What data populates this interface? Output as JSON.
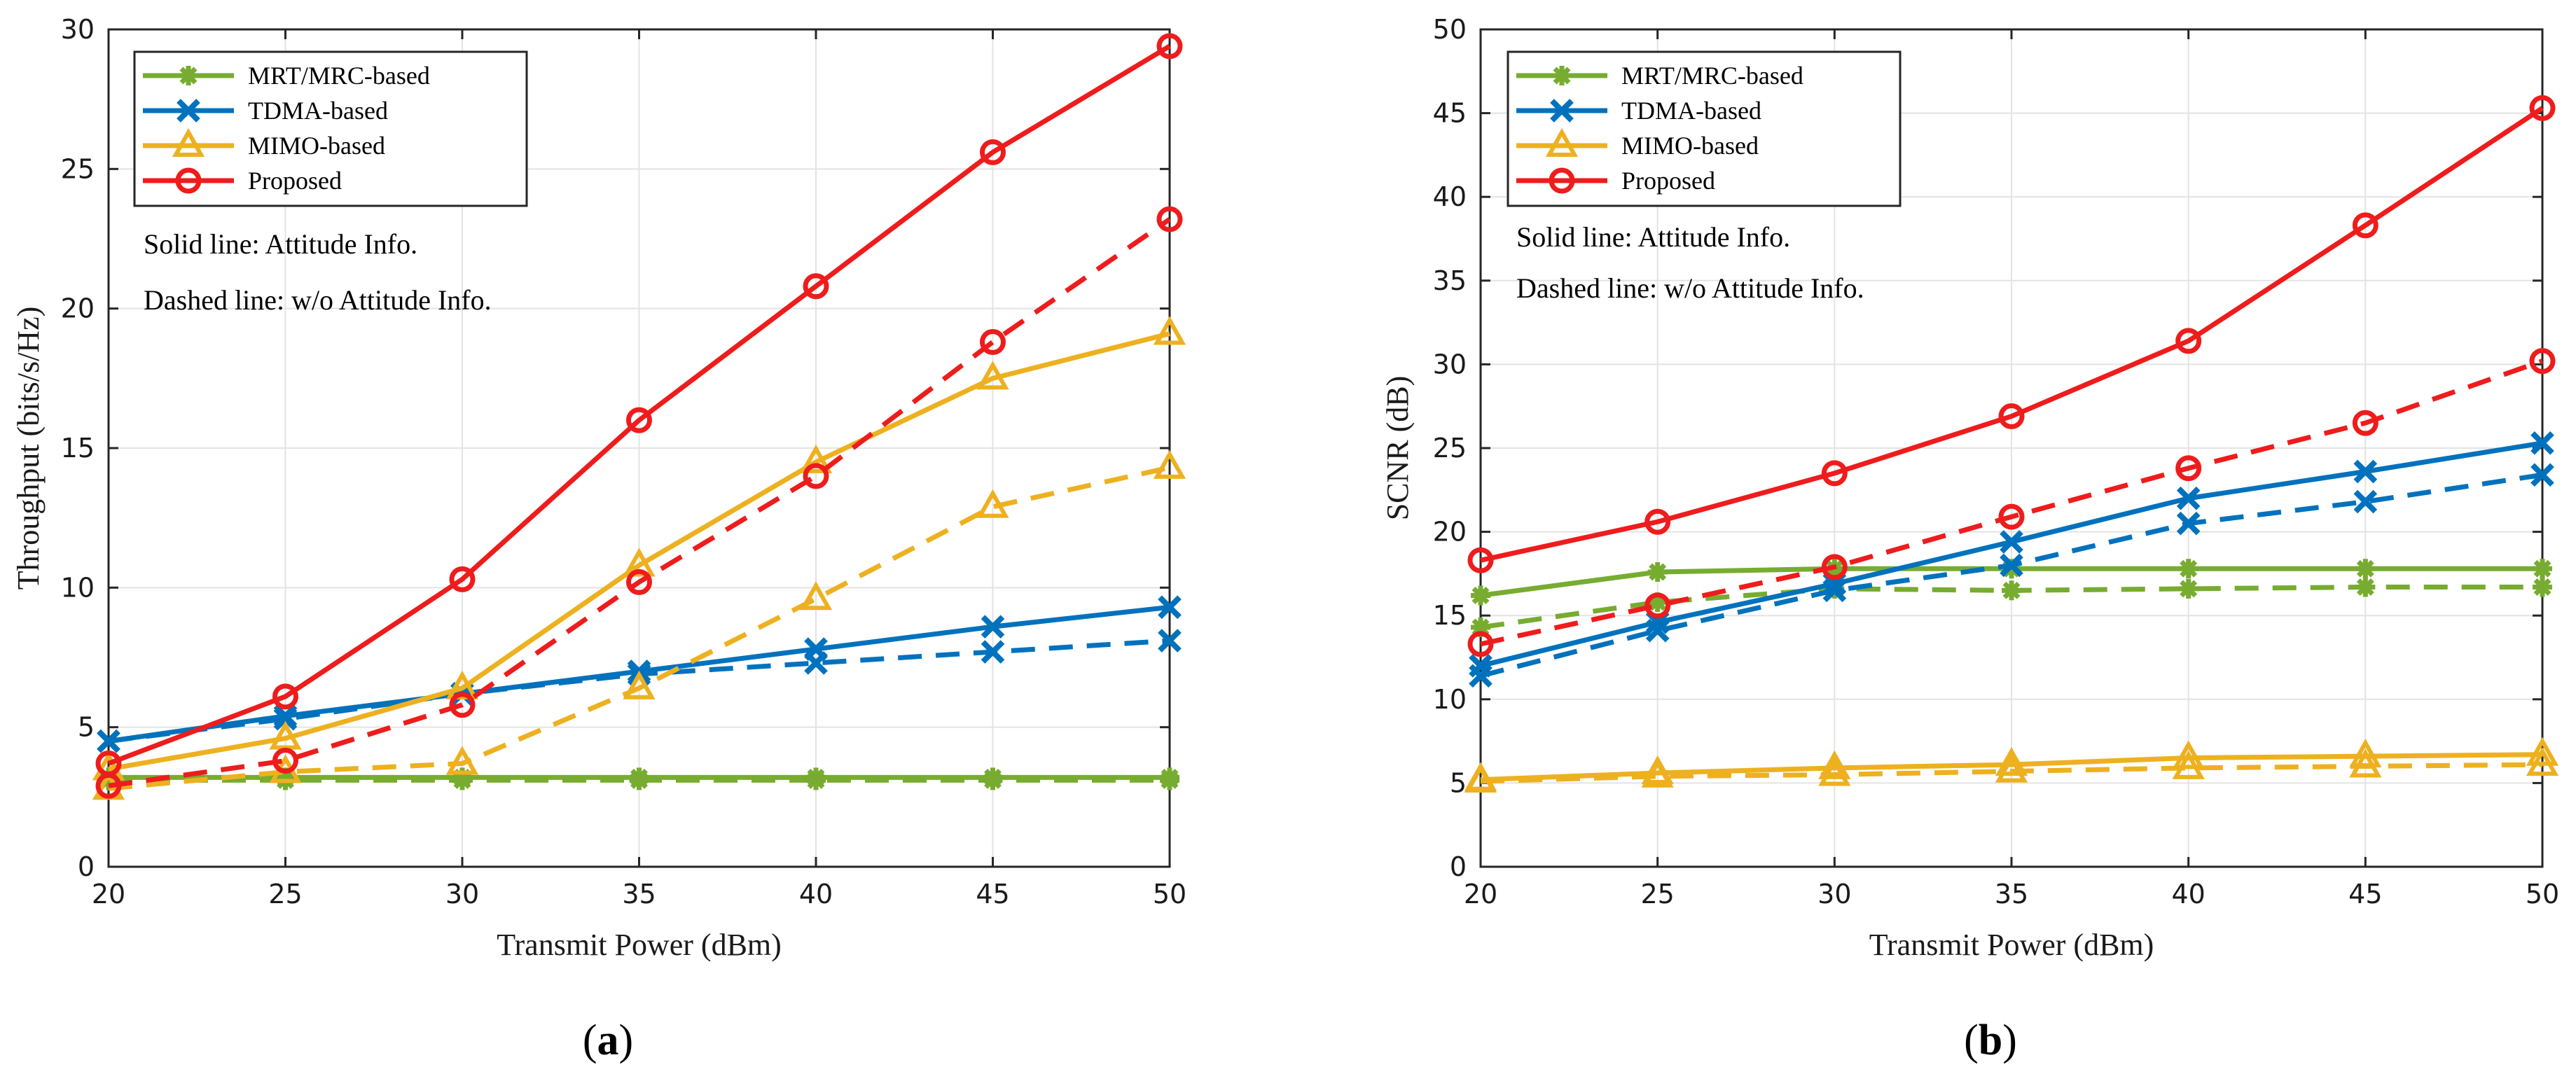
{
  "chart_data": [
    {
      "type": "line",
      "panel_label": "a",
      "title": "",
      "xlabel": "Transmit Power (dBm)",
      "ylabel": "Throughput (bits/s/Hz)",
      "xlim": [
        20,
        50
      ],
      "ylim": [
        0,
        30
      ],
      "xticks": [
        20,
        25,
        30,
        35,
        40,
        45,
        50
      ],
      "yticks": [
        0,
        5,
        10,
        15,
        20,
        25,
        30
      ],
      "grid": true,
      "legend_position": "top-left",
      "annotations": [
        "Solid line: Attitude Info.",
        "Dashed line: w/o Attitude Info."
      ],
      "x": [
        20,
        25,
        30,
        35,
        40,
        45,
        50
      ],
      "series": [
        {
          "name": "MRT/MRC-based",
          "color": "#77AC30",
          "marker": "asterisk",
          "style": "solid",
          "legend": true,
          "values": [
            3.2,
            3.2,
            3.2,
            3.2,
            3.2,
            3.2,
            3.2
          ]
        },
        {
          "name": "MRT/MRC-based",
          "color": "#77AC30",
          "marker": "asterisk",
          "style": "dashed",
          "legend": false,
          "values": [
            3.1,
            3.1,
            3.1,
            3.1,
            3.1,
            3.1,
            3.1
          ]
        },
        {
          "name": "TDMA-based",
          "color": "#0072BD",
          "marker": "x",
          "style": "solid",
          "legend": true,
          "values": [
            4.5,
            5.4,
            6.2,
            7.0,
            7.8,
            8.6,
            9.3
          ]
        },
        {
          "name": "TDMA-based",
          "color": "#0072BD",
          "marker": "x",
          "style": "dashed",
          "legend": false,
          "values": [
            4.5,
            5.3,
            6.2,
            6.9,
            7.3,
            7.7,
            8.1
          ]
        },
        {
          "name": "MIMO-based",
          "color": "#EDB120",
          "marker": "triangle",
          "style": "solid",
          "legend": true,
          "values": [
            3.5,
            4.6,
            6.4,
            10.8,
            14.5,
            17.5,
            19.1
          ]
        },
        {
          "name": "MIMO-based",
          "color": "#EDB120",
          "marker": "triangle",
          "style": "dashed",
          "legend": false,
          "values": [
            2.8,
            3.4,
            3.7,
            6.4,
            9.6,
            12.9,
            14.3
          ]
        },
        {
          "name": "Proposed",
          "color": "#EE1C1C",
          "marker": "circle",
          "style": "solid",
          "legend": true,
          "values": [
            3.7,
            6.1,
            10.3,
            16.0,
            20.8,
            25.6,
            29.4
          ]
        },
        {
          "name": "Proposed",
          "color": "#EE1C1C",
          "marker": "circle",
          "style": "dashed",
          "legend": false,
          "values": [
            2.9,
            3.8,
            5.8,
            10.2,
            14.0,
            18.8,
            23.2
          ]
        }
      ]
    },
    {
      "type": "line",
      "panel_label": "b",
      "title": "",
      "xlabel": "Transmit Power (dBm)",
      "ylabel": "SCNR (dB)",
      "xlim": [
        20,
        50
      ],
      "ylim": [
        0,
        50
      ],
      "xticks": [
        20,
        25,
        30,
        35,
        40,
        45,
        50
      ],
      "yticks": [
        0,
        5,
        10,
        15,
        20,
        25,
        30,
        35,
        40,
        45,
        50
      ],
      "grid": true,
      "legend_position": "top-left",
      "annotations": [
        "Solid line: Attitude Info.",
        "Dashed line: w/o Attitude Info."
      ],
      "x": [
        20,
        25,
        30,
        35,
        40,
        45,
        50
      ],
      "series": [
        {
          "name": "MRT/MRC-based",
          "color": "#77AC30",
          "marker": "asterisk",
          "style": "solid",
          "legend": true,
          "values": [
            16.2,
            17.6,
            17.8,
            17.8,
            17.8,
            17.8,
            17.8
          ]
        },
        {
          "name": "MRT/MRC-based",
          "color": "#77AC30",
          "marker": "asterisk",
          "style": "dashed",
          "legend": false,
          "values": [
            14.3,
            15.8,
            16.6,
            16.5,
            16.6,
            16.7,
            16.7
          ]
        },
        {
          "name": "TDMA-based",
          "color": "#0072BD",
          "marker": "x",
          "style": "solid",
          "legend": true,
          "values": [
            12.0,
            14.6,
            16.9,
            19.4,
            22.0,
            23.6,
            25.3
          ]
        },
        {
          "name": "TDMA-based",
          "color": "#0072BD",
          "marker": "x",
          "style": "dashed",
          "legend": false,
          "values": [
            11.4,
            14.1,
            16.5,
            18.0,
            20.5,
            21.8,
            23.4
          ]
        },
        {
          "name": "MIMO-based",
          "color": "#EDB120",
          "marker": "triangle",
          "style": "solid",
          "legend": true,
          "values": [
            5.2,
            5.6,
            5.9,
            6.1,
            6.5,
            6.6,
            6.7
          ]
        },
        {
          "name": "MIMO-based",
          "color": "#EDB120",
          "marker": "triangle",
          "style": "dashed",
          "legend": false,
          "values": [
            5.1,
            5.4,
            5.5,
            5.7,
            5.9,
            6.0,
            6.1
          ]
        },
        {
          "name": "Proposed",
          "color": "#EE1C1C",
          "marker": "circle",
          "style": "solid",
          "legend": true,
          "values": [
            18.3,
            20.6,
            23.5,
            26.9,
            31.4,
            38.3,
            45.3
          ]
        },
        {
          "name": "Proposed",
          "color": "#EE1C1C",
          "marker": "circle",
          "style": "dashed",
          "legend": false,
          "values": [
            13.3,
            15.6,
            17.9,
            20.9,
            23.8,
            26.5,
            30.2
          ]
        }
      ]
    }
  ]
}
